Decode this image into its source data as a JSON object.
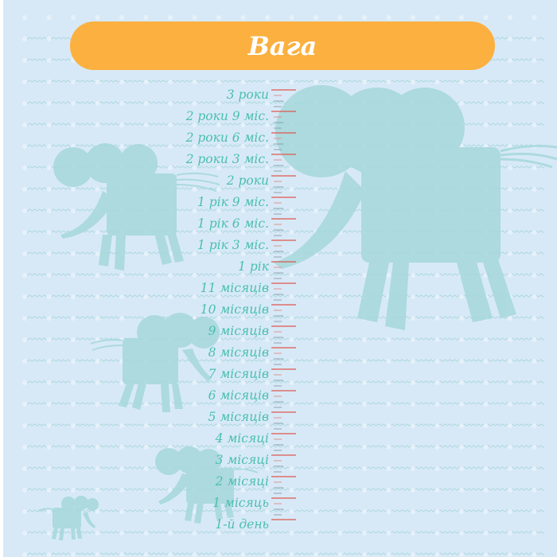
{
  "title": "Вага",
  "colors": {
    "background": "#d7e9f7",
    "banner": "#fbb040",
    "label": "#4bbfae",
    "major_tick": "#e0574f",
    "minor_tick": "#8a9aa5",
    "elephant": "#a8d9dc"
  },
  "scale_labels": [
    "3 роки",
    "2 роки 9 міс.",
    "2 роки 6 міс.",
    "2 роки 3 міс.",
    "2 роки",
    "1 рік 9 міс.",
    "1 рік 6 міс.",
    "1 рік 3 міс.",
    "1 рік",
    "11 місяців",
    "10 місяців",
    "9 місяців",
    "8 місяців",
    "7 місяців",
    "6 місяців",
    "5 місяців",
    "4 місяці",
    "3 місяці",
    "2 місяці",
    "1 місяць",
    "1-й день"
  ],
  "decorations": [
    "elephant-icon",
    "elephant-icon",
    "elephant-icon",
    "elephant-icon",
    "elephant-icon"
  ]
}
